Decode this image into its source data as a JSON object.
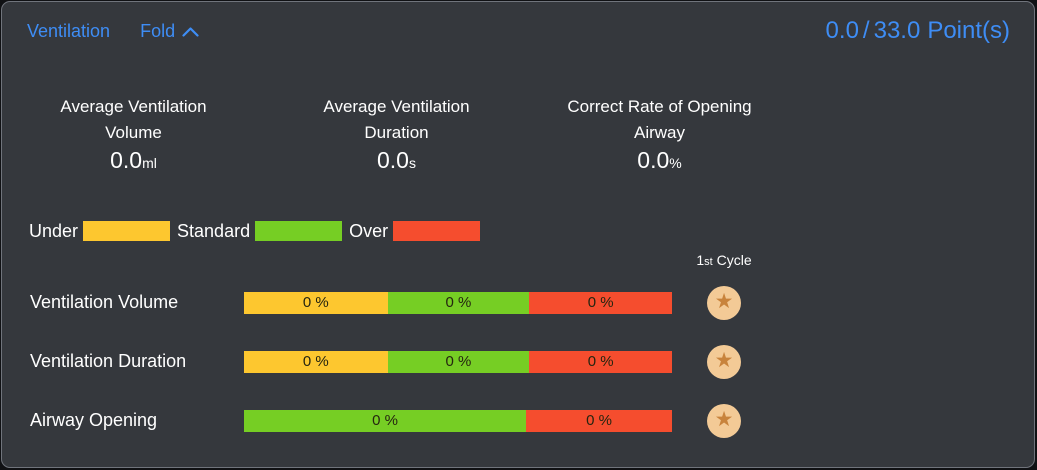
{
  "colors": {
    "accent": "#3e8df5",
    "under": "#fdc72f",
    "standard": "#76ce24",
    "over": "#f54d2e",
    "star_bg": "#f3ca96",
    "star_fg": "#c8833c",
    "panel_bg": "#35383d",
    "panel_border": "#70747c"
  },
  "header": {
    "title": "Ventilation",
    "fold_label": "Fold",
    "fold_icon": "chevron-up-icon"
  },
  "points": {
    "score": "0.0",
    "separator": "/",
    "total": "33.0",
    "unit": "Point(s)"
  },
  "stats": [
    {
      "label_line1": "Average Ventilation",
      "label_line2": "Volume",
      "value": "0.0",
      "unit": "ml"
    },
    {
      "label_line1": "Average Ventilation",
      "label_line2": "Duration",
      "value": "0.0",
      "unit": "s"
    },
    {
      "label_line1": "Correct Rate of Opening",
      "label_line2": "Airway",
      "value": "0.0",
      "unit": "%"
    }
  ],
  "legend": {
    "items": [
      {
        "label": "Under",
        "color_key": "under"
      },
      {
        "label": "Standard",
        "color_key": "standard"
      },
      {
        "label": "Over",
        "color_key": "over"
      }
    ]
  },
  "cycle_header": {
    "num": "1",
    "suffix": "st",
    "word": "Cycle"
  },
  "rows": [
    {
      "label": "Ventilation Volume",
      "segments": [
        {
          "status": "under",
          "label": "0 %",
          "fraction": 0.3355
        },
        {
          "status": "standard",
          "label": "0 %",
          "fraction": 0.3311
        },
        {
          "status": "over",
          "label": "0 %",
          "fraction": 0.3334
        }
      ],
      "star": "star-icon"
    },
    {
      "label": "Ventilation Duration",
      "segments": [
        {
          "status": "under",
          "label": "0 %",
          "fraction": 0.3355
        },
        {
          "status": "standard",
          "label": "0 %",
          "fraction": 0.3311
        },
        {
          "status": "over",
          "label": "0 %",
          "fraction": 0.3334
        }
      ],
      "star": "star-icon"
    },
    {
      "label": "Airway Opening",
      "segments": [
        {
          "status": "standard",
          "label": "0 %",
          "fraction": 0.659
        },
        {
          "status": "over",
          "label": "0 %",
          "fraction": 0.341
        }
      ],
      "star": "star-icon"
    }
  ],
  "star_glyph": "★"
}
